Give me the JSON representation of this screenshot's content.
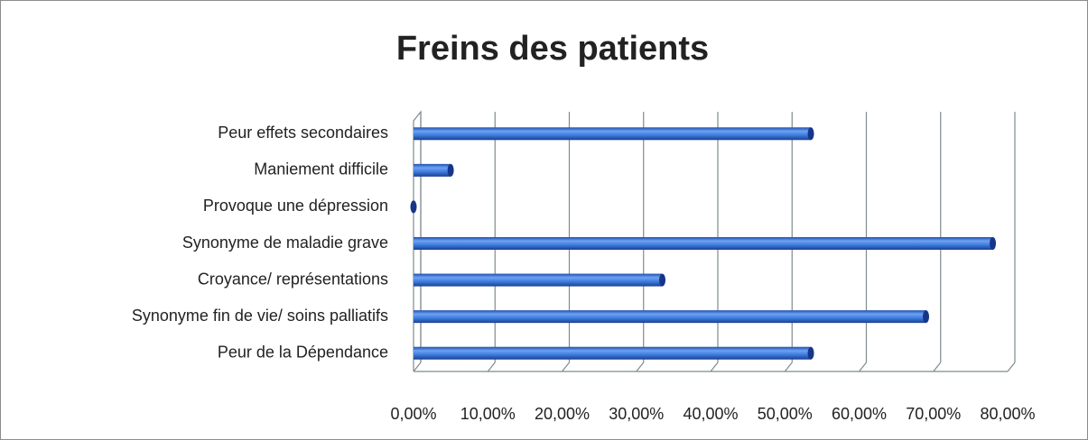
{
  "chart_data": {
    "type": "bar",
    "orientation": "horizontal",
    "title": "Freins des patients",
    "categories": [
      "Peur effets secondaires",
      "Maniement difficile",
      "Provoque une dépression",
      "Synonyme de maladie grave",
      "Croyance/ représentations",
      "Synonyme fin de vie/ soins palliatifs",
      "Peur de la Dépendance"
    ],
    "values": [
      53.5,
      5,
      0,
      78,
      33.5,
      69,
      53.5
    ],
    "color": "#3f7fe0",
    "xlim": [
      0,
      80
    ],
    "xticks": [
      {
        "value": 0,
        "label": "0,00%"
      },
      {
        "value": 10,
        "label": "10,00%"
      },
      {
        "value": 20,
        "label": "20,00%"
      },
      {
        "value": 30,
        "label": "30,00%"
      },
      {
        "value": 40,
        "label": "40,00%"
      },
      {
        "value": 50,
        "label": "50,00%"
      },
      {
        "value": 60,
        "label": "60,00%"
      },
      {
        "value": 70,
        "label": "70,00%"
      },
      {
        "value": 80,
        "label": "80,00%"
      }
    ],
    "grid": true
  }
}
